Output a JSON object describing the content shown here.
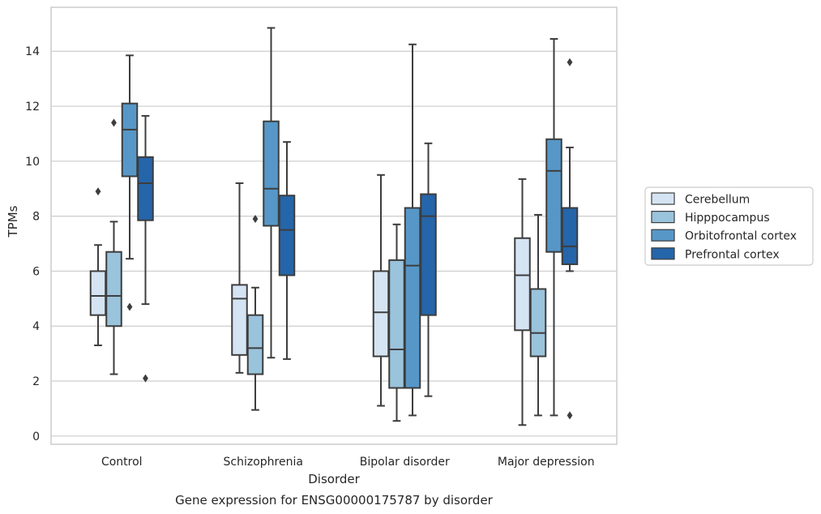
{
  "chart_data": {
    "type": "box",
    "title": "Gene expression for ENSG00000175787 by disorder",
    "xlabel": "Disorder",
    "ylabel": "TPMs",
    "ylim": [
      -0.3,
      15.6
    ],
    "yticks": [
      0,
      2,
      4,
      6,
      8,
      10,
      12,
      14
    ],
    "grid": true,
    "legend_position": "right",
    "categories": [
      "Control",
      "Schizophrenia",
      "Bipolar disorder",
      "Major depression"
    ],
    "series": [
      {
        "name": "Cerebellum",
        "color": "#d5e4f3",
        "boxes": [
          {
            "whislo": 3.3,
            "q1": 4.4,
            "med": 5.1,
            "q3": 6.0,
            "whishi": 6.95,
            "fliers": [
              8.9
            ]
          },
          {
            "whislo": 2.3,
            "q1": 2.95,
            "med": 5.0,
            "q3": 5.5,
            "whishi": 9.2,
            "fliers": []
          },
          {
            "whislo": 1.1,
            "q1": 2.9,
            "med": 4.5,
            "q3": 6.0,
            "whishi": 9.5,
            "fliers": []
          },
          {
            "whislo": 0.4,
            "q1": 3.85,
            "med": 5.85,
            "q3": 7.2,
            "whishi": 9.35,
            "fliers": []
          }
        ]
      },
      {
        "name": "Hipppocampus",
        "color": "#9ac3dc",
        "boxes": [
          {
            "whislo": 2.25,
            "q1": 4.0,
            "med": 5.1,
            "q3": 6.7,
            "whishi": 7.8,
            "fliers": [
              11.4
            ]
          },
          {
            "whislo": 0.95,
            "q1": 2.25,
            "med": 3.2,
            "q3": 4.4,
            "whishi": 5.4,
            "fliers": [
              7.9
            ]
          },
          {
            "whislo": 0.55,
            "q1": 1.75,
            "med": 3.15,
            "q3": 6.4,
            "whishi": 7.7,
            "fliers": []
          },
          {
            "whislo": 0.75,
            "q1": 2.9,
            "med": 3.75,
            "q3": 5.35,
            "whishi": 8.05,
            "fliers": []
          }
        ]
      },
      {
        "name": "Orbitofrontal cortex",
        "color": "#5697c8",
        "boxes": [
          {
            "whislo": 6.45,
            "q1": 9.45,
            "med": 11.15,
            "q3": 12.1,
            "whishi": 13.85,
            "fliers": [
              4.7
            ]
          },
          {
            "whislo": 2.85,
            "q1": 7.65,
            "med": 9.0,
            "q3": 11.45,
            "whishi": 14.85,
            "fliers": []
          },
          {
            "whislo": 0.75,
            "q1": 1.75,
            "med": 6.2,
            "q3": 8.3,
            "whishi": 14.25,
            "fliers": []
          },
          {
            "whislo": 0.75,
            "q1": 6.7,
            "med": 9.65,
            "q3": 10.8,
            "whishi": 14.45,
            "fliers": []
          }
        ]
      },
      {
        "name": "Prefrontal cortex",
        "color": "#2565a9",
        "boxes": [
          {
            "whislo": 4.8,
            "q1": 7.85,
            "med": 9.2,
            "q3": 10.15,
            "whishi": 11.65,
            "fliers": [
              2.1
            ]
          },
          {
            "whislo": 2.8,
            "q1": 5.85,
            "med": 7.5,
            "q3": 8.75,
            "whishi": 10.7,
            "fliers": []
          },
          {
            "whislo": 1.45,
            "q1": 4.4,
            "med": 8.0,
            "q3": 8.8,
            "whishi": 10.65,
            "fliers": []
          },
          {
            "whislo": 6.0,
            "q1": 6.25,
            "med": 6.9,
            "q3": 8.3,
            "whishi": 10.5,
            "fliers": [
              13.6,
              0.75
            ]
          }
        ]
      }
    ]
  }
}
